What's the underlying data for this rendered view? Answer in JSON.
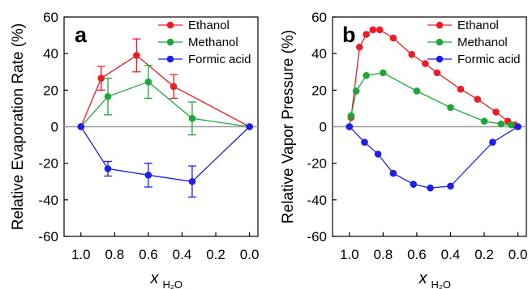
{
  "chart_data": [
    {
      "type": "line",
      "panel_label": "a",
      "ylabel": "Relative Evaporation Rate (%)",
      "xlabel_main": "x",
      "xlabel_sub": "H₂O",
      "xlim": [
        1.1,
        -0.05
      ],
      "ylim": [
        -60,
        60
      ],
      "xticks": [
        "1.0",
        "0.8",
        "0.6",
        "0.4",
        "0.2",
        "0.0"
      ],
      "yticks": [
        "-60",
        "-40",
        "-20",
        "0",
        "20",
        "40",
        "60"
      ],
      "zero_line": true,
      "legend_position": "top-right",
      "series": [
        {
          "name": "Ethanol",
          "color": "#ee1c25",
          "x": [
            1.0,
            0.88,
            0.67,
            0.45,
            0.0
          ],
          "y": [
            0,
            26.5,
            39,
            22,
            0
          ],
          "err": [
            0,
            6.5,
            9,
            6.5,
            0
          ]
        },
        {
          "name": "Methanol",
          "color": "#1fa638",
          "x": [
            1.0,
            0.84,
            0.6,
            0.34,
            0.0
          ],
          "y": [
            0,
            16.5,
            24.5,
            4.5,
            0
          ],
          "err": [
            0,
            10,
            9,
            9,
            0
          ]
        },
        {
          "name": "Formic acid",
          "color": "#1e1ee6",
          "x": [
            1.0,
            0.84,
            0.6,
            0.34,
            0.0
          ],
          "y": [
            0,
            -23,
            -26.5,
            -30,
            0
          ],
          "err": [
            0,
            4,
            6.5,
            8.5,
            0
          ]
        }
      ]
    },
    {
      "type": "line",
      "panel_label": "b",
      "ylabel": "Relative Vapor Pressure (%)",
      "xlabel_main": "x",
      "xlabel_sub": "H₂O",
      "xlim": [
        1.1,
        -0.05
      ],
      "ylim": [
        -60,
        60
      ],
      "xticks": [
        "1.0",
        "0.8",
        "0.6",
        "0.4",
        "0.2",
        "0.0"
      ],
      "yticks": [
        "-60",
        "-40",
        "-20",
        "0",
        "20",
        "40",
        "60"
      ],
      "zero_line": true,
      "legend_position": "top-right",
      "series": [
        {
          "name": "Ethanol",
          "color": "#ee1c25",
          "x": [
            1.0,
            0.99,
            0.94,
            0.9,
            0.86,
            0.82,
            0.74,
            0.63,
            0.55,
            0.48,
            0.34,
            0.24,
            0.13,
            0.06,
            0.02
          ],
          "y": [
            0,
            5,
            43.5,
            50.5,
            53,
            53,
            48.5,
            39.5,
            34.5,
            29.5,
            20.5,
            15,
            8,
            3,
            1
          ]
        },
        {
          "name": "Methanol",
          "color": "#1fa638",
          "x": [
            1.0,
            0.99,
            0.96,
            0.9,
            0.8,
            0.6,
            0.4,
            0.2,
            0.1,
            0.04,
            0.0
          ],
          "y": [
            0,
            6,
            19.5,
            28,
            29.5,
            19.5,
            10.5,
            3,
            1.5,
            1,
            0
          ]
        },
        {
          "name": "Formic acid",
          "color": "#1e1ee6",
          "x": [
            1.0,
            0.91,
            0.83,
            0.74,
            0.62,
            0.52,
            0.4,
            0.15,
            0.0
          ],
          "y": [
            0,
            -8.5,
            -15,
            -25.5,
            -31.5,
            -33.5,
            -32.5,
            -8.5,
            0
          ]
        }
      ]
    }
  ]
}
